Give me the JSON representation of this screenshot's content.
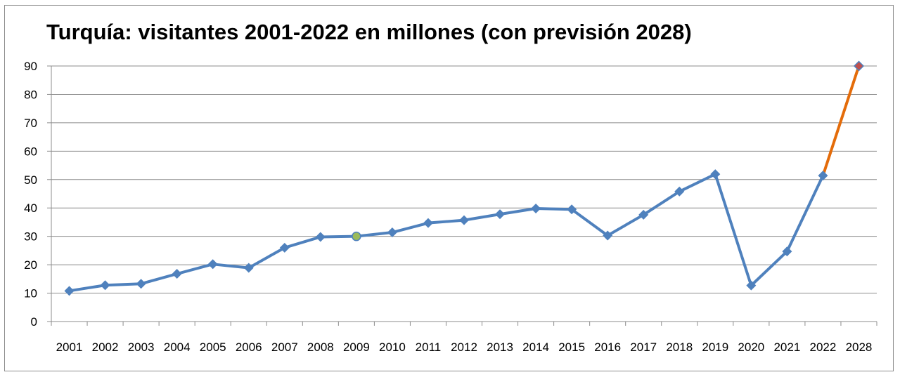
{
  "chart_data": {
    "type": "line",
    "title": "Turquía: visitantes 2001-2022 en millones (con previsión 2028)",
    "xlabel": "",
    "ylabel": "",
    "categories": [
      "2001",
      "2002",
      "2003",
      "2004",
      "2005",
      "2006",
      "2007",
      "2008",
      "2009",
      "2010",
      "2011",
      "2012",
      "2013",
      "2014",
      "2015",
      "2016",
      "2017",
      "2018",
      "2019",
      "2020",
      "2021",
      "2022",
      "2028"
    ],
    "yticks": [
      "0",
      "10",
      "20",
      "30",
      "40",
      "50",
      "60",
      "70",
      "80",
      "90"
    ],
    "ylim": [
      0,
      90
    ],
    "grid": true,
    "legend": "none",
    "series": [
      {
        "values": [
          10.8,
          12.8,
          13.3,
          16.8,
          20.2,
          18.9,
          26.0,
          29.8,
          30.0,
          31.4,
          34.7,
          35.7,
          37.8,
          39.8,
          39.5,
          30.3,
          37.6,
          45.8,
          51.9,
          12.7,
          24.7,
          51.4,
          null
        ],
        "color": "#4f81bd"
      },
      {
        "values": [
          null,
          null,
          null,
          null,
          null,
          null,
          null,
          null,
          null,
          null,
          null,
          null,
          null,
          null,
          null,
          null,
          null,
          null,
          null,
          null,
          null,
          51.4,
          90
        ],
        "color": "#e46c0a"
      }
    ],
    "highlight_point": {
      "category": "2009",
      "color": "#9bbb59"
    },
    "forecast_marker_color": "#c0504d"
  }
}
